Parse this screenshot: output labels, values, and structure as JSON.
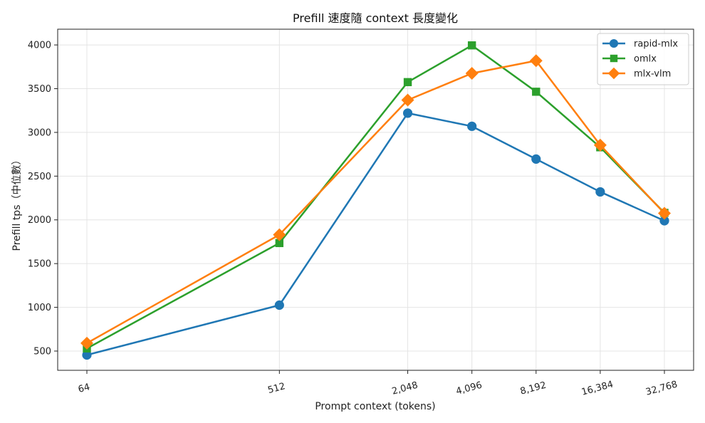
{
  "chart_data": {
    "type": "line",
    "title": "Prefill 速度隨 context 長度變化",
    "xlabel": "Prompt context (tokens)",
    "ylabel": "Prefill tps（中位數）",
    "x_scale": "log2",
    "x": [
      64,
      512,
      2048,
      4096,
      8192,
      16384,
      32768
    ],
    "x_tick_labels": [
      "64",
      "512",
      "2,048",
      "4,096",
      "8,192",
      "16,384",
      "32,768"
    ],
    "ylim": [
      280,
      4180
    ],
    "y_ticks": [
      500,
      1000,
      1500,
      2000,
      2500,
      3000,
      3500,
      4000
    ],
    "grid": true,
    "legend_position": "top-right",
    "series": [
      {
        "name": "rapid-mlx",
        "color": "#1f77b4",
        "marker": "circle",
        "values": [
          455,
          1025,
          3220,
          3070,
          2695,
          2320,
          1990
        ]
      },
      {
        "name": "omlx",
        "color": "#2ca02c",
        "marker": "square",
        "values": [
          530,
          1735,
          3575,
          3995,
          3465,
          2830,
          2080
        ]
      },
      {
        "name": "mlx-vlm",
        "color": "#ff7f0e",
        "marker": "diamond",
        "values": [
          590,
          1830,
          3370,
          3675,
          3820,
          2855,
          2075
        ]
      }
    ]
  }
}
